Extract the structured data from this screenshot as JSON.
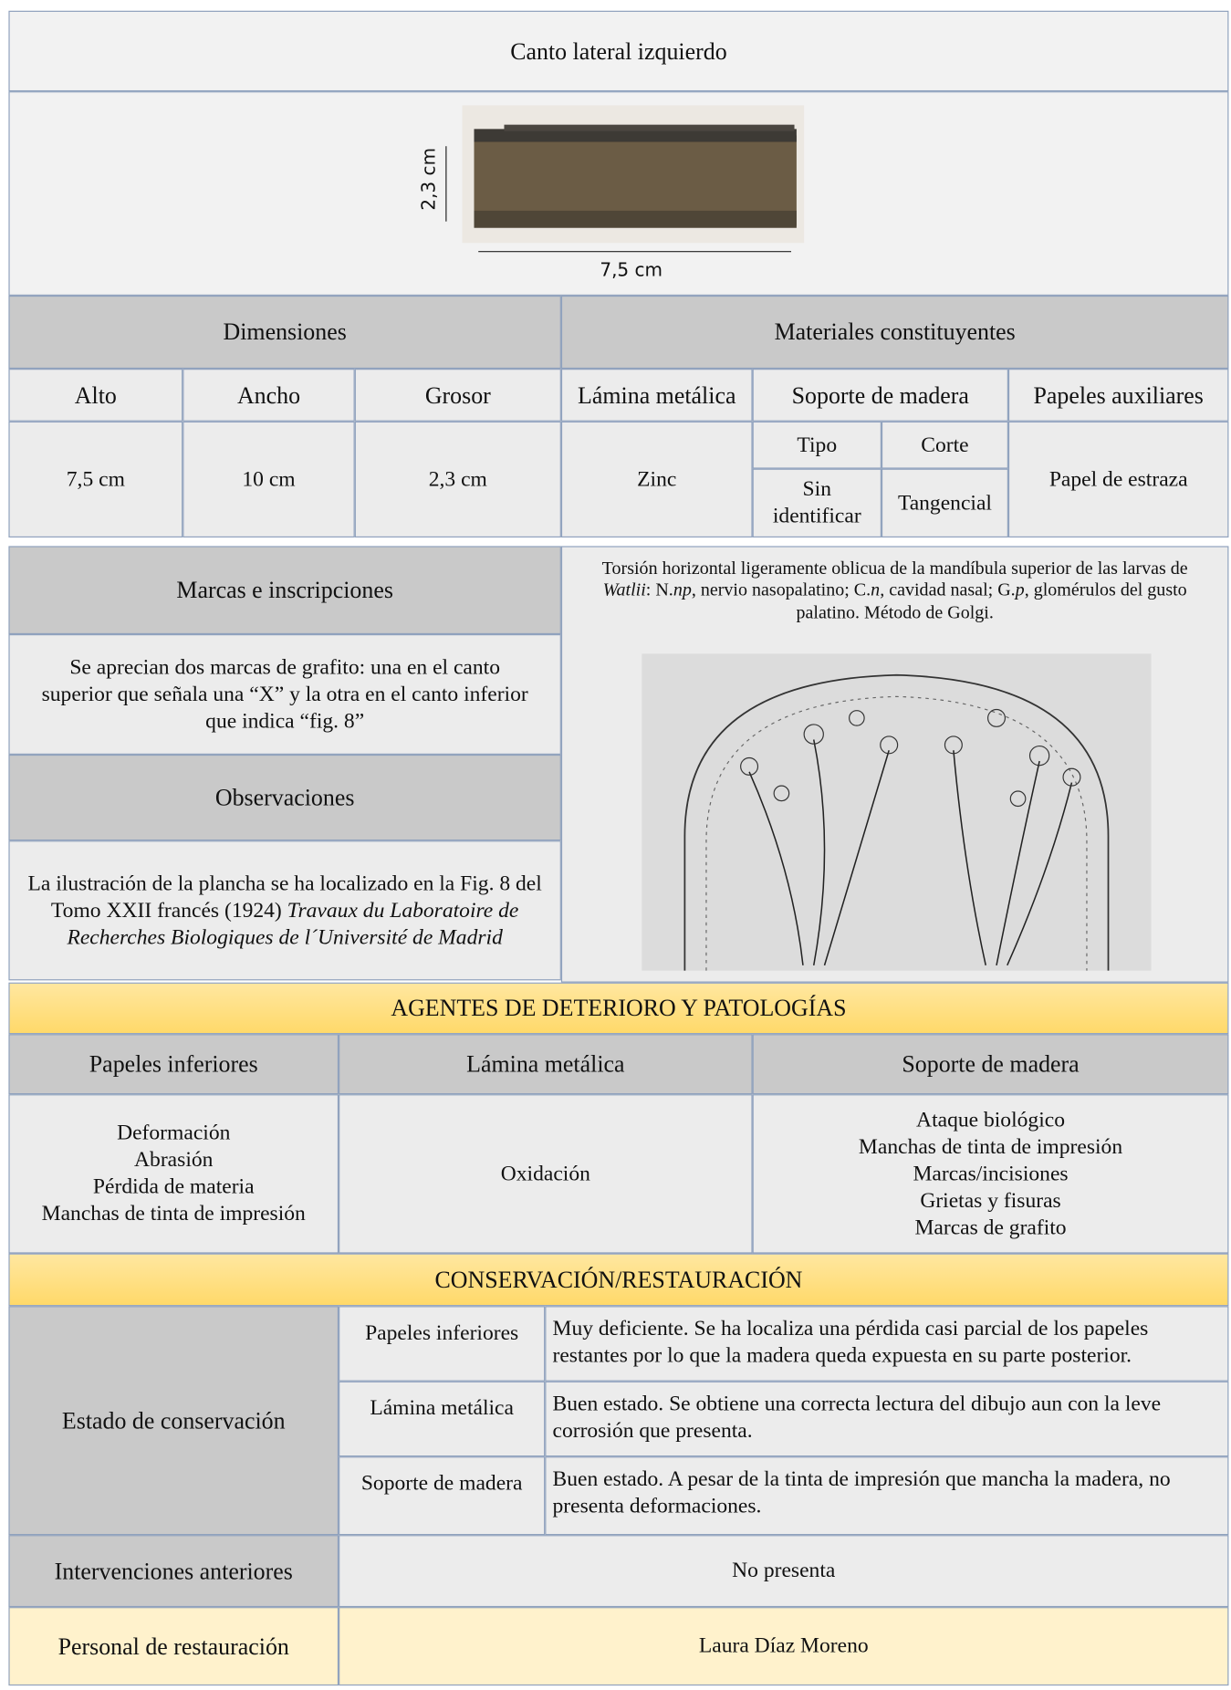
{
  "header": {
    "title": "Canto lateral izquierdo"
  },
  "image": {
    "height_label": "2,3 cm",
    "width_label": "7,5 cm"
  },
  "dimensions": {
    "title": "Dimensiones",
    "columns": [
      "Alto",
      "Ancho",
      "Grosor"
    ],
    "values": [
      "7,5 cm",
      "10 cm",
      "2,3 cm"
    ]
  },
  "materials": {
    "title": "Materiales constituyentes",
    "lamina": {
      "label": "Lámina metálica",
      "value": "Zinc"
    },
    "soporte": {
      "label": "Soporte de madera",
      "tipo_label": "Tipo",
      "corte_label": "Corte",
      "tipo": "Sin identificar",
      "corte": "Tangencial"
    },
    "papeles": {
      "label": "Papeles auxiliares",
      "value": "Papel de estraza"
    }
  },
  "marks": {
    "title": "Marcas e inscripciones",
    "text": "Se aprecian dos marcas de grafito: una en el canto superior que señala una “X” y la otra en el canto inferior que indica “fig. 8”"
  },
  "observations": {
    "title": "Observaciones",
    "segments": [
      {
        "text": "La ilustración de la plancha se ha localizado en la Fig. 8 del Tomo XXII francés (1924) "
      },
      {
        "text": "Travaux du Laboratoire de Recherches Biologiques de l´Université de Madrid",
        "italic": true
      }
    ]
  },
  "caption": {
    "segments": [
      {
        "text": "Torsión horizontal ligeramente oblicua de la mandíbula superior de las larvas de "
      },
      {
        "text": "Watlii",
        "italic": true
      },
      {
        "text": ": N."
      },
      {
        "text": "np",
        "italic": true
      },
      {
        "text": ", nervio nasopalatino; C."
      },
      {
        "text": "n,",
        "italic": true
      },
      {
        "text": " cavidad nasal; G."
      },
      {
        "text": "p",
        "italic": true
      },
      {
        "text": ", glomérulos del gusto palatino. Método de Golgi."
      }
    ]
  },
  "agents": {
    "title": "AGENTES DE DETERIORO Y PATOLOGÍAS",
    "columns": [
      {
        "title": "Papeles inferiores",
        "items": [
          "Deformación",
          "Abrasión",
          "Pérdida de materia",
          "Manchas de tinta de impresión"
        ]
      },
      {
        "title": "Lámina metálica",
        "items": [
          "Oxidación"
        ]
      },
      {
        "title": "Soporte de madera",
        "items": [
          "Ataque biológico",
          "Manchas de tinta de impresión",
          "Marcas/incisiones",
          "Grietas y fisuras",
          "Marcas de grafito"
        ]
      }
    ]
  },
  "conservation": {
    "title": "CONSERVACIÓN/RESTAURACIÓN",
    "state_label": "Estado de conservación",
    "rows": [
      {
        "part": "Papeles inferiores",
        "text": "Muy deficiente. Se ha localiza una pérdida casi parcial de los papeles restantes por lo que la madera queda expuesta en su parte posterior."
      },
      {
        "part": "Lámina metálica",
        "text": "Buen estado. Se obtiene una correcta lectura del dibujo aun con la leve corrosión que presenta."
      },
      {
        "part": "Soporte de madera",
        "text": "Buen estado. A pesar de la tinta de impresión que mancha la madera, no presenta deformaciones."
      }
    ],
    "previous_label": "Intervenciones anteriores",
    "previous_value": "No presenta",
    "staff_label": "Personal de restauración",
    "staff_value": "Laura Díaz Moreno"
  }
}
